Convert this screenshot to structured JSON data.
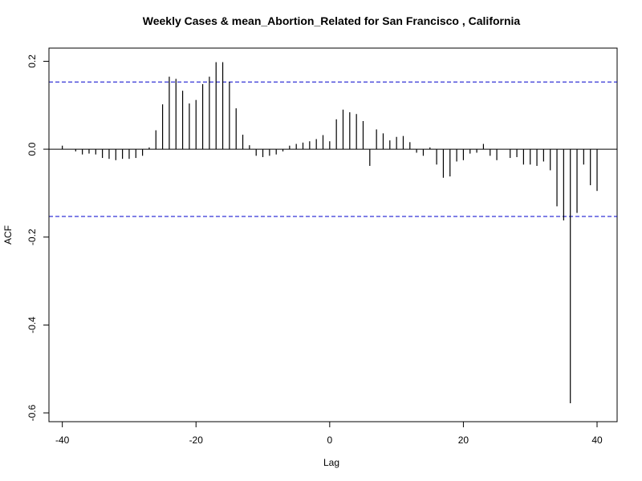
{
  "chart_data": {
    "type": "bar",
    "title": "Weekly Cases & mean_Abortion_Related for San Francisco , California",
    "xlabel": "Lag",
    "ylabel": "ACF",
    "xlim": [
      -42,
      43
    ],
    "ylim": [
      -0.62,
      0.23
    ],
    "x_ticks": [
      -40,
      -20,
      0,
      20,
      40
    ],
    "x_tick_labels": [
      "-40",
      "-20",
      "0",
      "20",
      "40"
    ],
    "y_ticks": [
      -0.6,
      -0.4,
      -0.2,
      0.0,
      0.2
    ],
    "y_tick_labels": [
      "-0.6",
      "-0.4",
      "-0.2",
      "0.0",
      "0.2"
    ],
    "confidence_bound": 0.153,
    "zero_line": true,
    "grid": false,
    "colors": {
      "bars": "#000000",
      "bounds": "#0000cc",
      "axes": "#000000"
    },
    "lags": [
      -40,
      -39,
      -38,
      -37,
      -36,
      -35,
      -34,
      -33,
      -32,
      -31,
      -30,
      -29,
      -28,
      -27,
      -26,
      -25,
      -24,
      -23,
      -22,
      -21,
      -20,
      -19,
      -18,
      -17,
      -16,
      -15,
      -14,
      -13,
      -12,
      -11,
      -10,
      -9,
      -8,
      -7,
      -6,
      -5,
      -4,
      -3,
      -2,
      -1,
      0,
      1,
      2,
      3,
      4,
      5,
      6,
      7,
      8,
      9,
      10,
      11,
      12,
      13,
      14,
      15,
      16,
      17,
      18,
      19,
      20,
      21,
      22,
      23,
      24,
      25,
      26,
      27,
      28,
      29,
      30,
      31,
      32,
      33,
      34,
      35,
      36,
      37,
      38,
      39,
      40
    ],
    "values": [
      0.008,
      0.0,
      -0.005,
      -0.012,
      -0.01,
      -0.012,
      -0.02,
      -0.022,
      -0.025,
      -0.022,
      -0.022,
      -0.02,
      -0.015,
      0.004,
      0.043,
      0.102,
      0.165,
      0.16,
      0.133,
      0.104,
      0.112,
      0.148,
      0.165,
      0.198,
      0.198,
      0.153,
      0.093,
      0.033,
      0.009,
      -0.015,
      -0.018,
      -0.015,
      -0.012,
      -0.005,
      0.008,
      0.012,
      0.015,
      0.018,
      0.023,
      0.032,
      0.018,
      0.068,
      0.09,
      0.084,
      0.08,
      0.064,
      -0.038,
      0.045,
      0.036,
      0.02,
      0.028,
      0.03,
      0.016,
      -0.008,
      -0.015,
      0.004,
      -0.035,
      -0.065,
      -0.062,
      -0.028,
      -0.025,
      -0.01,
      -0.008,
      0.012,
      -0.015,
      -0.025,
      0.0,
      -0.02,
      -0.018,
      -0.035,
      -0.035,
      -0.038,
      -0.028,
      -0.048,
      -0.13,
      -0.162,
      -0.578,
      -0.145,
      -0.035,
      -0.082,
      -0.095
    ]
  }
}
